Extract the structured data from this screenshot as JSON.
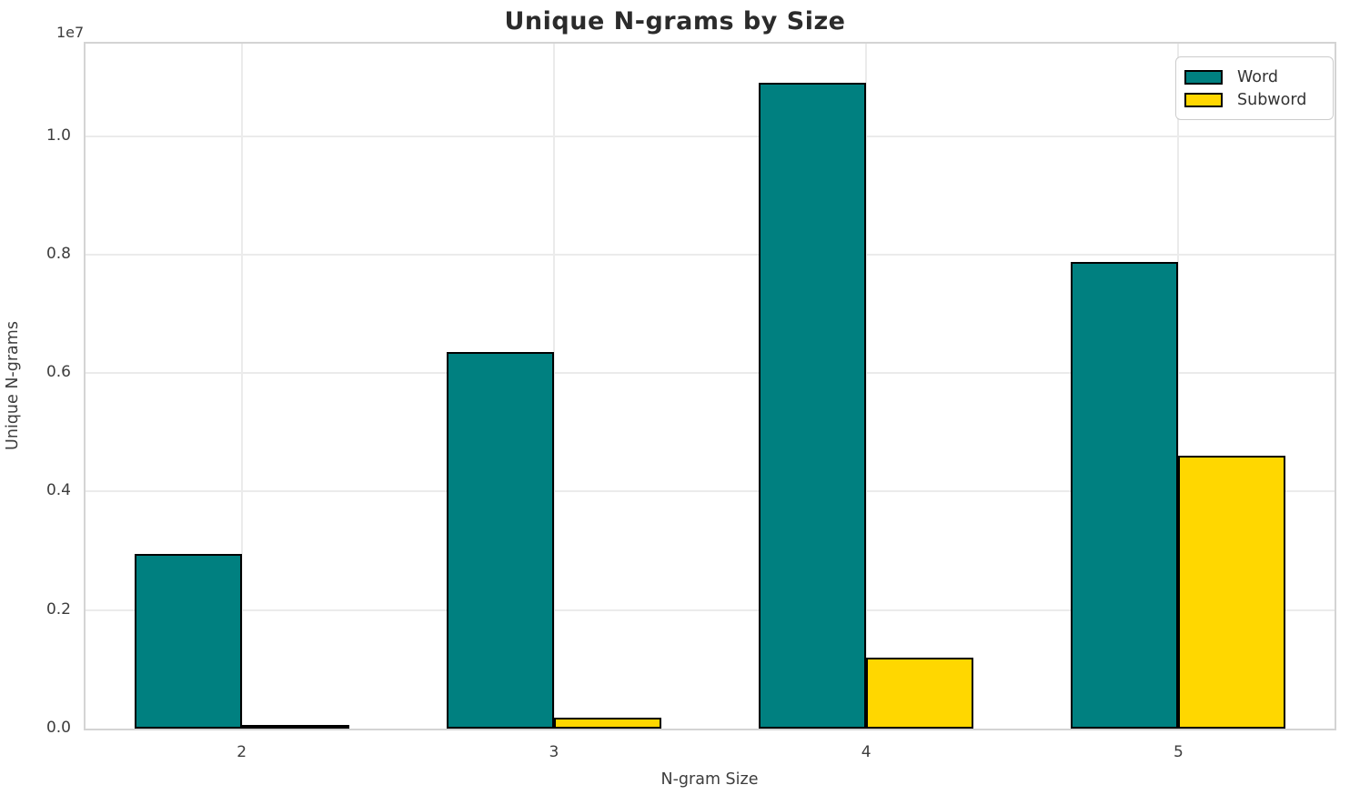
{
  "title": "Unique N-grams by Size",
  "offset_label": "1e7",
  "x_axis_label": "N-gram Size",
  "y_axis_label": "Unique N-grams",
  "yticks": [
    "0.0",
    "0.2",
    "0.4",
    "0.6",
    "0.8",
    "1.0"
  ],
  "xticks": [
    "2",
    "3",
    "4",
    "5"
  ],
  "legend": {
    "items": [
      {
        "label": "Word",
        "color": "#008080"
      },
      {
        "label": "Subword",
        "color": "#ffd700"
      }
    ]
  },
  "colors": {
    "word": "#008080",
    "subword": "#ffd700",
    "bar_edge": "#000000",
    "grid": "#ebebeb",
    "spine": "#d4d4d4",
    "text": "#3d3d3d",
    "title": "#2b2b2b"
  },
  "chart_data": {
    "type": "bar",
    "categories": [
      "2",
      "3",
      "4",
      "5"
    ],
    "series": [
      {
        "name": "Word",
        "color": "#008080",
        "values": [
          2950000,
          6350000,
          10900000,
          7870000
        ]
      },
      {
        "name": "Subword",
        "color": "#ffd700",
        "values": [
          40000,
          180000,
          1200000,
          4600000
        ]
      }
    ],
    "title": "Unique N-grams by Size",
    "xlabel": "N-gram Size",
    "ylabel": "Unique N-grams",
    "ylim": [
      0,
      11560000
    ],
    "ytick_values": [
      0,
      2000000,
      4000000,
      6000000,
      8000000,
      10000000
    ],
    "y_offset_multiplier": "1e7",
    "grid": true,
    "legend_position": "upper right",
    "bar_edge_color": "#000000"
  }
}
